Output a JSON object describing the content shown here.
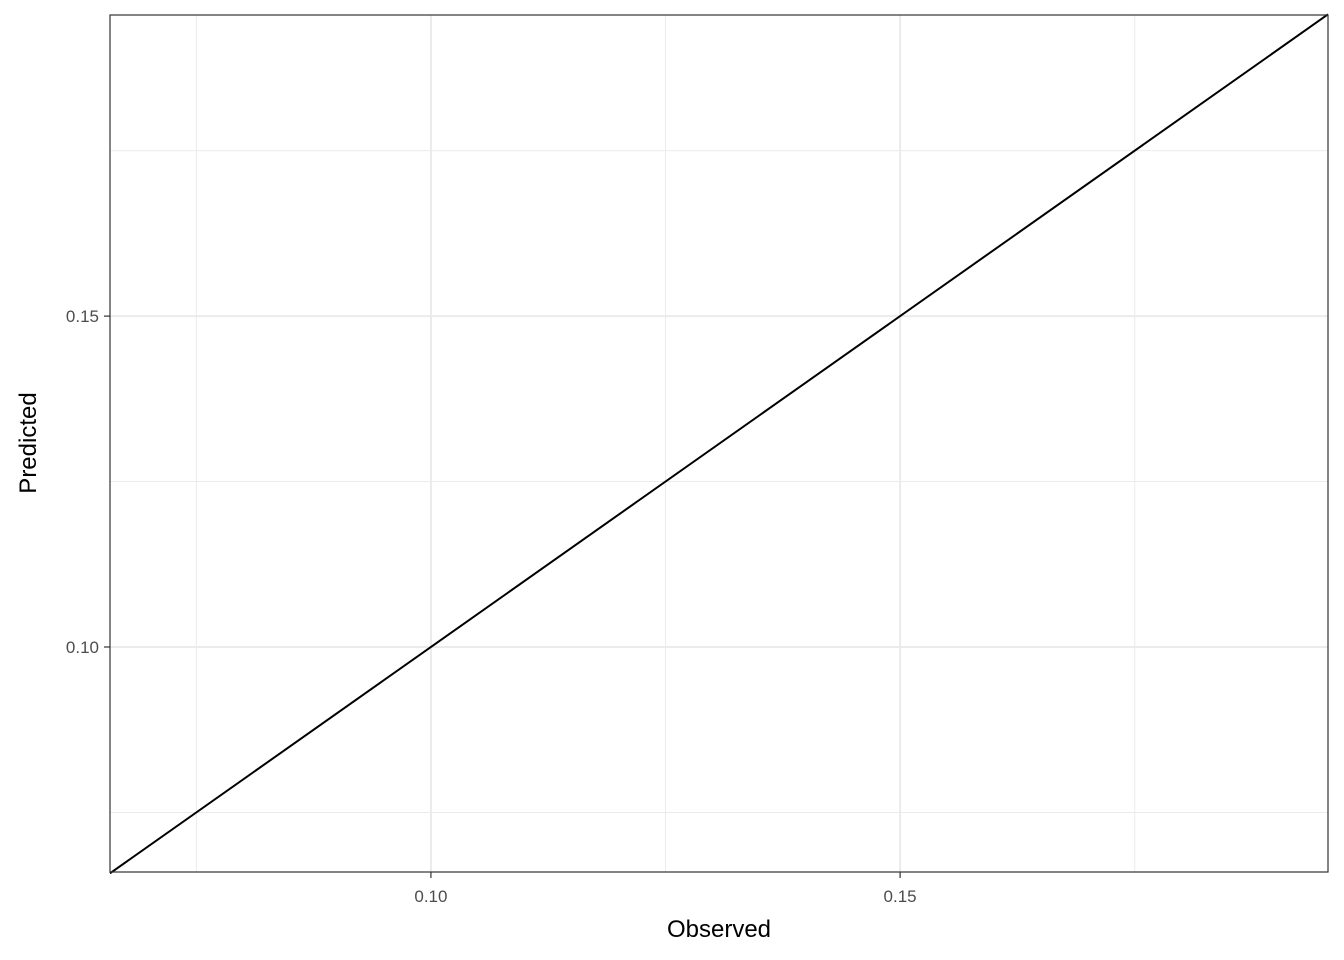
{
  "chart_data": {
    "type": "line",
    "title": "",
    "xlabel": "Observed",
    "ylabel": "Predicted",
    "xlim": [
      0.0658,
      0.1956
    ],
    "ylim": [
      0.066,
      0.1955
    ],
    "x_ticks": [
      0.1,
      0.15
    ],
    "x_tick_labels": [
      "0.10",
      "0.15"
    ],
    "x_minor_ticks": [
      0.075,
      0.125,
      0.175
    ],
    "y_ticks": [
      0.1,
      0.15
    ],
    "y_tick_labels": [
      "0.10",
      "0.15"
    ],
    "y_minor_ticks": [
      0.075,
      0.125,
      0.175
    ],
    "grid": true,
    "series": [
      {
        "x": [
          0.0658,
          0.1956
        ],
        "y": [
          0.0658,
          0.1956
        ],
        "color": "#000000"
      }
    ]
  }
}
